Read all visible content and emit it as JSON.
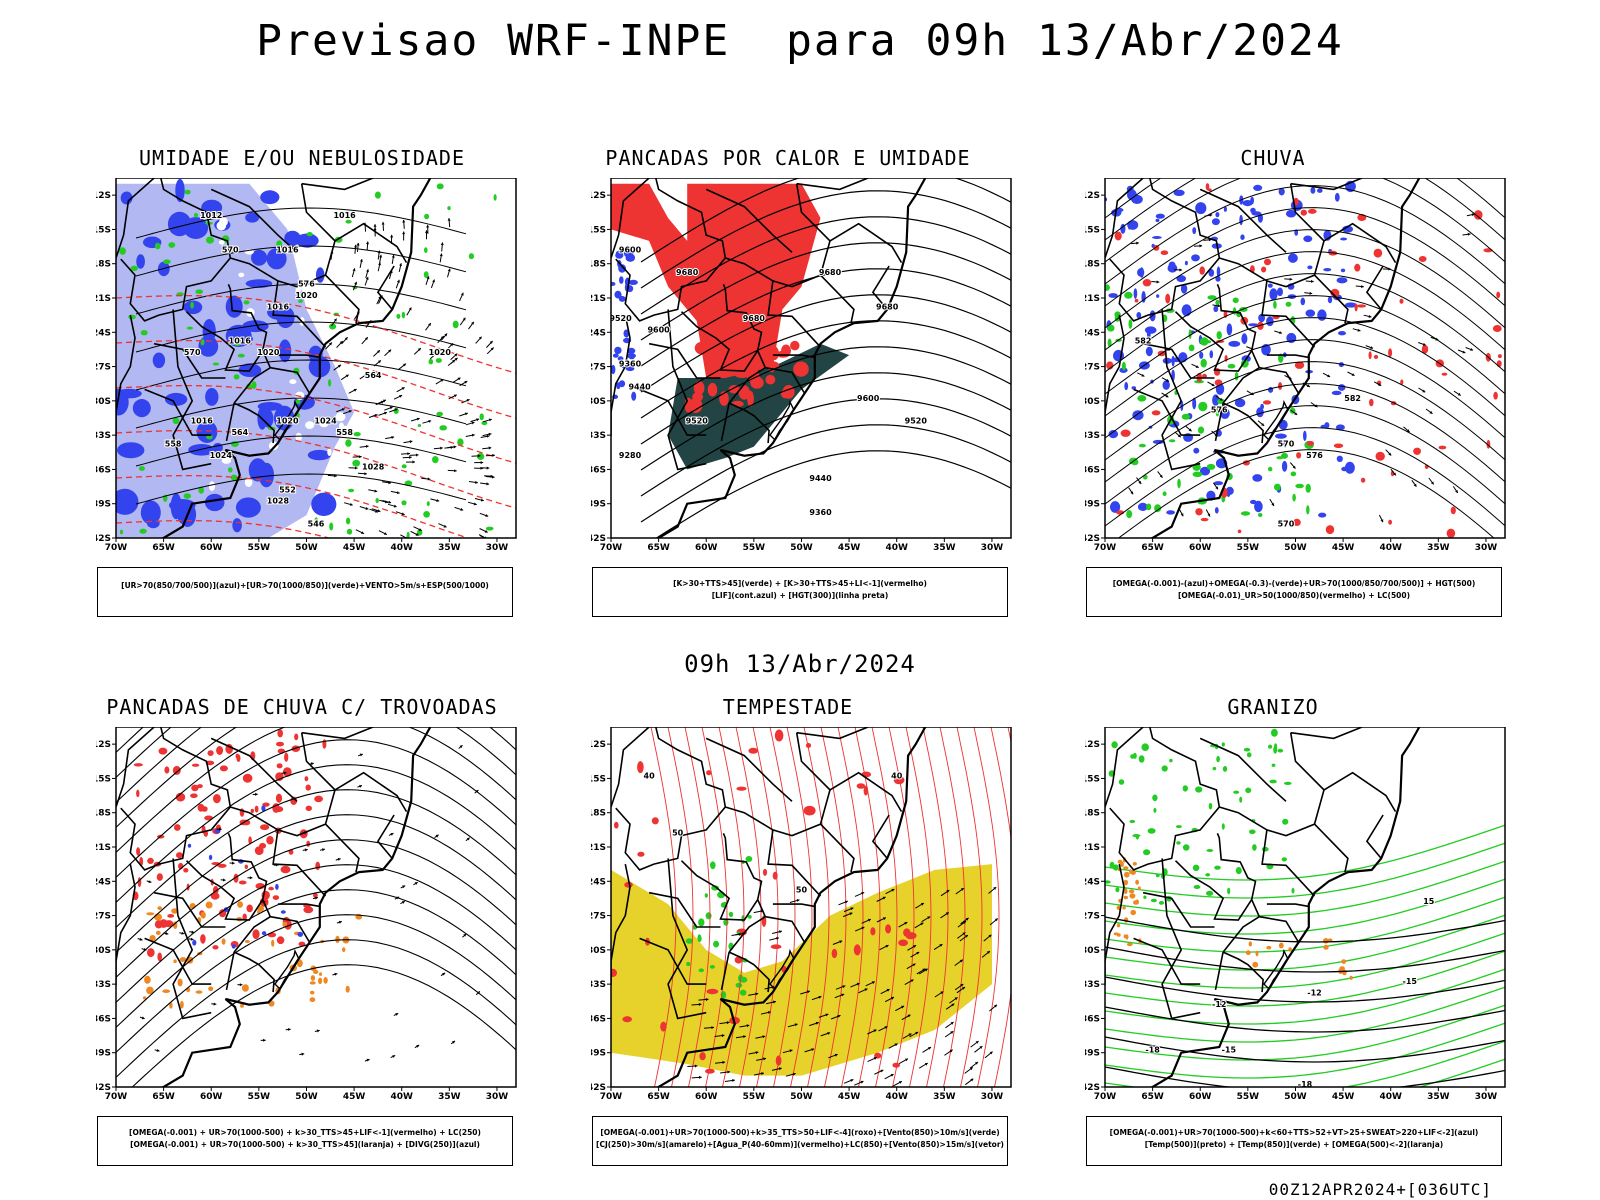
{
  "header": {
    "title": "Previsao WRF-INPE  para 09h 13/Abr/2024",
    "mid_title": "09h 13/Abr/2024"
  },
  "footer": {
    "run": "00Z12APR2024+[036UTC]"
  },
  "axes": {
    "lat_ticks": [
      "12S",
      "15S",
      "18S",
      "21S",
      "24S",
      "27S",
      "30S",
      "33S",
      "36S",
      "39S",
      "42S"
    ],
    "lon_ticks": [
      "70W",
      "65W",
      "60W",
      "55W",
      "50W",
      "45W",
      "40W",
      "35W",
      "30W"
    ]
  },
  "colors": {
    "blue": "#3344ee",
    "light_blue": "#aab0f0",
    "green": "#22cc22",
    "red": "#ee3333",
    "orange": "#ee8822",
    "yellow": "#e6d22a",
    "dark_teal": "#224444"
  },
  "panels": [
    {
      "id": "umidade",
      "title": "UMIDADE E/OU NEBULOSIDADE",
      "legend": [
        "[UR>70(850/700/500)](azul)+[UR>70(1000/850)](verde)+VENTO>5m/s+ESP(500/1000)"
      ],
      "labels": [
        {
          "text": "1012",
          "lon": -60,
          "lat": -14
        },
        {
          "text": "1016",
          "lon": -46,
          "lat": -14
        },
        {
          "text": "1016",
          "lon": -52,
          "lat": -17
        },
        {
          "text": "1016",
          "lon": -53,
          "lat": -22
        },
        {
          "text": "1020",
          "lon": -50,
          "lat": -21
        },
        {
          "text": "1020",
          "lon": -36,
          "lat": -26
        },
        {
          "text": "1016",
          "lon": -57,
          "lat": -25
        },
        {
          "text": "1020",
          "lon": -54,
          "lat": -26
        },
        {
          "text": "1016",
          "lon": -61,
          "lat": -32
        },
        {
          "text": "1020",
          "lon": -52,
          "lat": -32
        },
        {
          "text": "1024",
          "lon": -48,
          "lat": -32
        },
        {
          "text": "1024",
          "lon": -59,
          "lat": -35
        },
        {
          "text": "1028",
          "lon": -53,
          "lat": -39
        },
        {
          "text": "1028",
          "lon": -43,
          "lat": -36
        },
        {
          "text": "576",
          "lon": -50,
          "lat": -20
        },
        {
          "text": "570",
          "lon": -58,
          "lat": -17
        },
        {
          "text": "570",
          "lon": -62,
          "lat": -26
        },
        {
          "text": "564",
          "lon": -57,
          "lat": -33
        },
        {
          "text": "558",
          "lon": -64,
          "lat": -34
        },
        {
          "text": "552",
          "lon": -52,
          "lat": -38
        },
        {
          "text": "546",
          "lon": -49,
          "lat": -41
        },
        {
          "text": "564",
          "lon": -43,
          "lat": -28
        },
        {
          "text": "558",
          "lon": -46,
          "lat": -33
        }
      ]
    },
    {
      "id": "pancadas_calor",
      "title": "PANCADAS POR CALOR E UMIDADE",
      "legend": [
        "[K>30+TTS>45](verde) + [K>30+TTS>45+LI<-1](vermelho)",
        "[LIF](cont.azul) + [HGT(300)](linha preta)"
      ],
      "labels": [
        {
          "text": "9600",
          "lon": -68,
          "lat": -17
        },
        {
          "text": "9680",
          "lon": -62,
          "lat": -19
        },
        {
          "text": "9520",
          "lon": -69,
          "lat": -23
        },
        {
          "text": "9600",
          "lon": -65,
          "lat": -24
        },
        {
          "text": "9360",
          "lon": -68,
          "lat": -27
        },
        {
          "text": "9440",
          "lon": -67,
          "lat": -29
        },
        {
          "text": "9280",
          "lon": -68,
          "lat": -35
        },
        {
          "text": "9520",
          "lon": -61,
          "lat": -32
        },
        {
          "text": "9680",
          "lon": -55,
          "lat": -23
        },
        {
          "text": "9680",
          "lon": -47,
          "lat": -19
        },
        {
          "text": "9680",
          "lon": -41,
          "lat": -22
        },
        {
          "text": "9600",
          "lon": -43,
          "lat": -30
        },
        {
          "text": "9520",
          "lon": -38,
          "lat": -32
        },
        {
          "text": "9440",
          "lon": -48,
          "lat": -37
        },
        {
          "text": "9360",
          "lon": -48,
          "lat": -40
        }
      ]
    },
    {
      "id": "chuva",
      "title": "CHUVA",
      "legend": [
        "[OMEGA(-0.001)-(azul)+OMEGA(-0.3)-(verde)+UR>70(1000/850/700/500)] + HGT(500)",
        "[OMEGA(-0.01)_UR>50(1000/850)(vermelho) + LC(500)"
      ],
      "labels": [
        {
          "text": "582",
          "lon": -66,
          "lat": -25
        },
        {
          "text": "576",
          "lon": -58,
          "lat": -31
        },
        {
          "text": "570",
          "lon": -51,
          "lat": -34
        },
        {
          "text": "576",
          "lon": -48,
          "lat": -35
        },
        {
          "text": "570",
          "lon": -51,
          "lat": -41
        },
        {
          "text": "582",
          "lon": -44,
          "lat": -30
        }
      ]
    },
    {
      "id": "trovoadas",
      "title": "PANCADAS DE CHUVA C/ TROVOADAS",
      "legend": [
        "[OMEGA(-0.001) + UR>70(1000-500) + k>30_TTS>45+LIF<-1](vermelho) + LC(250)",
        "[OMEGA(-0.001) + UR>70(1000-500) + k>30_TTS>45](laranja) + [DIVG(250)](azul)"
      ],
      "labels": []
    },
    {
      "id": "tempestade",
      "title": "TEMPESTADE",
      "legend": [
        "[OMEGA(-0.001)+UR>70(1000-500)+k>35_TTS>50+LIF<-4](roxo)+[Vento(850)>10m/s](verde)",
        "[CJ(250)>30m/s](amarelo)+[Agua_P(40-60mm)](vermelho)+LC(850)+[Vento(850)>15m/s](vetor)"
      ],
      "labels": [
        {
          "text": "40",
          "lon": -66,
          "lat": -15
        },
        {
          "text": "40",
          "lon": -40,
          "lat": -15
        },
        {
          "text": "50",
          "lon": -50,
          "lat": -25
        },
        {
          "text": "50",
          "lon": -63,
          "lat": -20
        }
      ]
    },
    {
      "id": "granizo",
      "title": "GRANIZO",
      "legend": [
        "[OMEGA(-0.001)+UR>70(1000-500)+k<60+TTS>52+VT>25+SWEAT>220+LIF<-2](azul)",
        "[Temp(500)](preto) + [Temp(850)](verde) + [OMEGA(500)<-2](laranja)"
      ],
      "labels": [
        {
          "text": "-12",
          "lon": -58,
          "lat": -35
        },
        {
          "text": "-12",
          "lon": -48,
          "lat": -34
        },
        {
          "text": "-15",
          "lon": -38,
          "lat": -33
        },
        {
          "text": "-18",
          "lon": -65,
          "lat": -39
        },
        {
          "text": "-15",
          "lon": -57,
          "lat": -39
        },
        {
          "text": "-18",
          "lon": -49,
          "lat": -42
        },
        {
          "text": "15",
          "lon": -36,
          "lat": -26
        }
      ]
    }
  ]
}
